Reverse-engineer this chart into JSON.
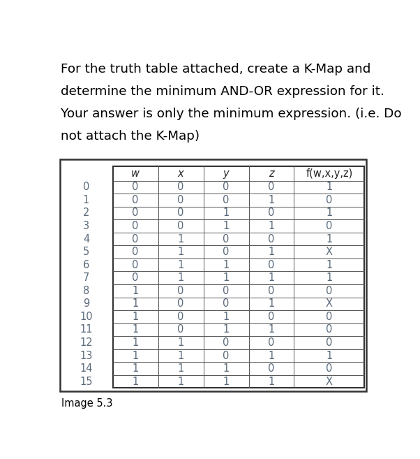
{
  "title_lines": [
    "For the truth table attached, create a K-Map and",
    "determine the minimum AND-OR expression for it.",
    "Your answer is only the minimum expression. (i.e. Do",
    "not attach the K-Map)"
  ],
  "caption": "Image 5.3",
  "headers": [
    "w",
    "x",
    "y",
    "z",
    "f(w,x,y,z)"
  ],
  "row_labels": [
    "0",
    "1",
    "2",
    "3",
    "4",
    "5",
    "6",
    "7",
    "8",
    "9",
    "10",
    "11",
    "12",
    "13",
    "14",
    "15"
  ],
  "table_data": [
    [
      "0",
      "0",
      "0",
      "0",
      "1"
    ],
    [
      "0",
      "0",
      "0",
      "1",
      "0"
    ],
    [
      "0",
      "0",
      "1",
      "0",
      "1"
    ],
    [
      "0",
      "0",
      "1",
      "1",
      "0"
    ],
    [
      "0",
      "1",
      "0",
      "0",
      "1"
    ],
    [
      "0",
      "1",
      "0",
      "1",
      "X"
    ],
    [
      "0",
      "1",
      "1",
      "0",
      "1"
    ],
    [
      "0",
      "1",
      "1",
      "1",
      "1"
    ],
    [
      "1",
      "0",
      "0",
      "0",
      "0"
    ],
    [
      "1",
      "0",
      "0",
      "1",
      "X"
    ],
    [
      "1",
      "0",
      "1",
      "0",
      "0"
    ],
    [
      "1",
      "0",
      "1",
      "1",
      "0"
    ],
    [
      "1",
      "1",
      "0",
      "0",
      "0"
    ],
    [
      "1",
      "1",
      "0",
      "1",
      "1"
    ],
    [
      "1",
      "1",
      "1",
      "0",
      "0"
    ],
    [
      "1",
      "1",
      "1",
      "1",
      "X"
    ]
  ],
  "bg_color": "#ffffff",
  "title_fontsize": 13.2,
  "table_fontsize": 10.5,
  "caption_fontsize": 10.5,
  "header_fontsize": 10.5,
  "title_color": "#000000",
  "cell_text_color": "#5a6a7a",
  "row_label_color": "#5a6a7a",
  "line_color": "#555555",
  "outer_box_color": "#333333"
}
